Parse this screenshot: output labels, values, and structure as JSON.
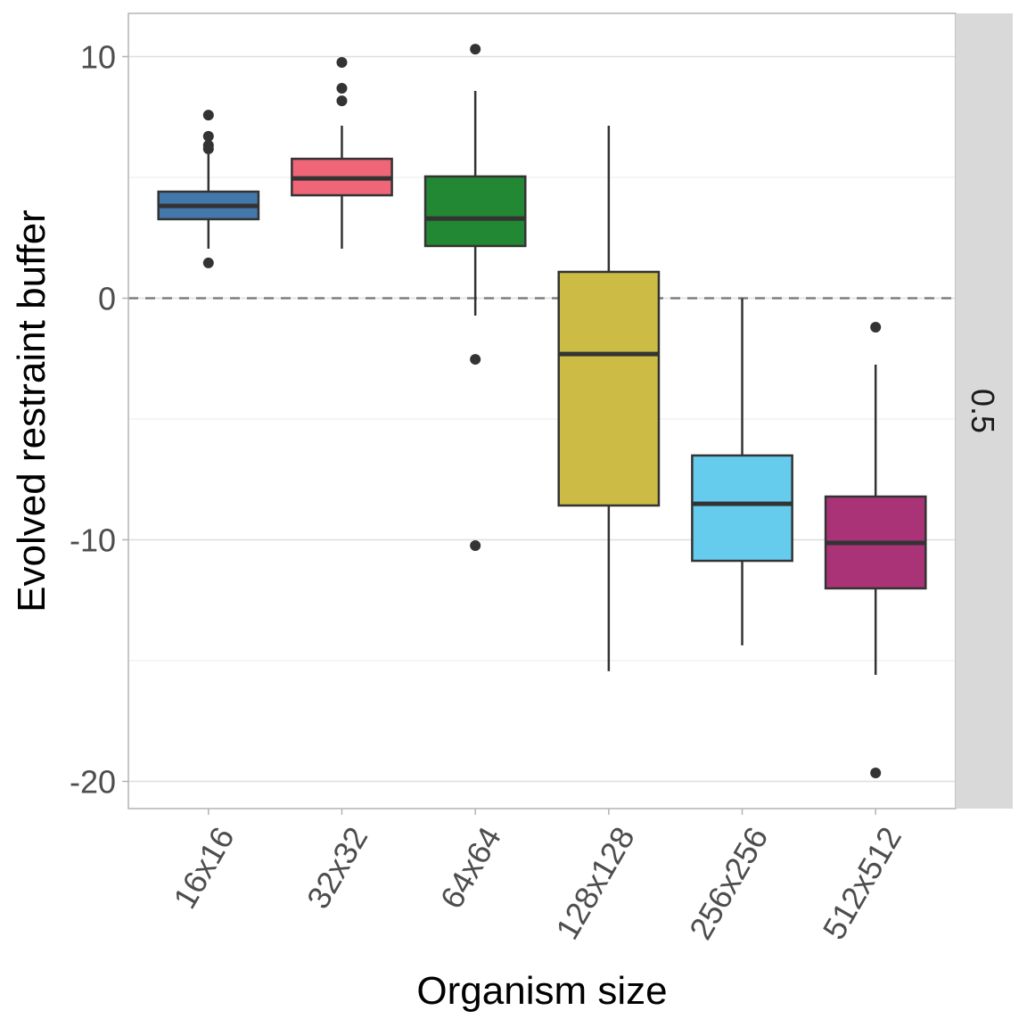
{
  "chart_data": {
    "type": "box",
    "title": "",
    "xlabel": "Organism size",
    "ylabel": "Evolved restraint buffer",
    "facet_label": "0.5",
    "ylim": [
      -21.1,
      11.8
    ],
    "yticks": [
      -20,
      -10,
      0,
      10
    ],
    "ytick_labels": [
      "-20",
      "-10",
      "0",
      "10"
    ],
    "reference_line": {
      "y": 0,
      "style": "dashed"
    },
    "grid": true,
    "legend": "none",
    "categories": [
      "16x16",
      "32x32",
      "64x64",
      "128x128",
      "256x256",
      "512x512"
    ],
    "boxes": [
      {
        "category": "16x16",
        "color": "#4477AA",
        "whisker_low": 2.05,
        "q1": 3.27,
        "median": 3.82,
        "q3": 4.41,
        "whisker_high": 5.96,
        "outliers": [
          7.58,
          6.7,
          6.33,
          6.18,
          1.46
        ]
      },
      {
        "category": "32x32",
        "color": "#EE6677",
        "whisker_low": 2.05,
        "q1": 4.26,
        "median": 4.96,
        "q3": 5.77,
        "whisker_high": 7.14,
        "outliers": [
          9.76,
          8.69,
          8.17
        ]
      },
      {
        "category": "64x64",
        "color": "#228833",
        "whisker_low": -0.72,
        "q1": 2.16,
        "median": 3.3,
        "q3": 5.04,
        "whisker_high": 8.58,
        "outliers": [
          10.31,
          -2.53,
          -10.24
        ]
      },
      {
        "category": "128x128",
        "color": "#CCBB44",
        "whisker_low": -15.44,
        "q1": -8.58,
        "median": -2.31,
        "q3": 1.09,
        "whisker_high": 7.14,
        "outliers": []
      },
      {
        "category": "256x256",
        "color": "#66CCEE",
        "whisker_low": -14.37,
        "q1": -10.87,
        "median": -8.51,
        "q3": -6.51,
        "whisker_high": 0.0,
        "outliers": []
      },
      {
        "category": "512x512",
        "color": "#AA3377",
        "whisker_low": -15.59,
        "q1": -12.01,
        "median": -10.13,
        "q3": -8.21,
        "whisker_high": -2.75,
        "outliers": [
          -1.2,
          -19.65
        ]
      }
    ]
  }
}
